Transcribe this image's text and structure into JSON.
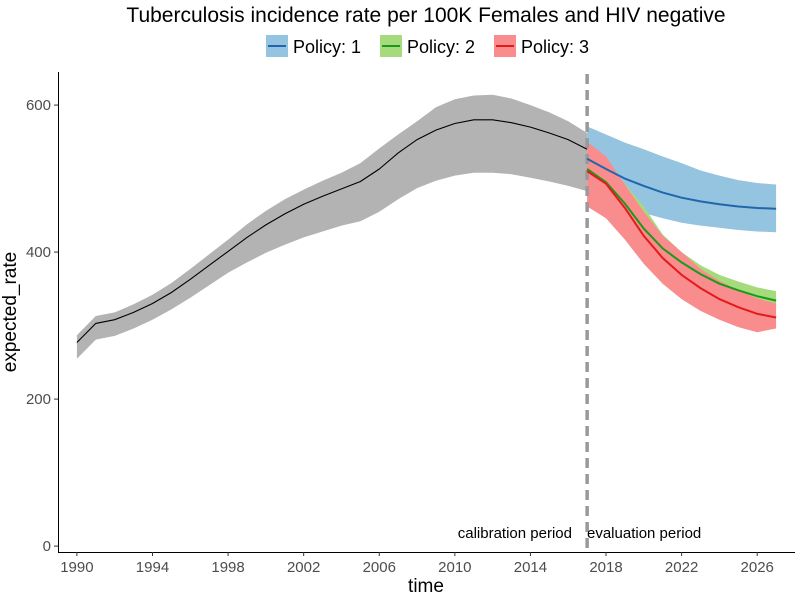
{
  "chart_data": {
    "type": "line",
    "title": "Tuberculosis incidence rate per 100K Females and HIV negative",
    "xlabel": "time",
    "ylabel": "expected_rate",
    "xlim": [
      1989,
      2028
    ],
    "ylim": [
      -8,
      645
    ],
    "x_ticks": [
      1990,
      1994,
      1998,
      2002,
      2006,
      2010,
      2014,
      2018,
      2022,
      2026
    ],
    "y_ticks": [
      0,
      200,
      400,
      600
    ],
    "grid": false,
    "legend": {
      "position": "top"
    },
    "divider": {
      "x": 2017,
      "style": "dashed",
      "color": "#999999"
    },
    "annotations": {
      "left": "calibration period",
      "right": "evaluation period"
    },
    "history": {
      "color": "#000000",
      "band_color": "#b3b3b3",
      "x": [
        1990,
        1991,
        1992,
        1993,
        1994,
        1995,
        1996,
        1997,
        1998,
        1999,
        2000,
        2001,
        2002,
        2003,
        2004,
        2005,
        2006,
        2007,
        2008,
        2009,
        2010,
        2011,
        2012,
        2013,
        2014,
        2015,
        2016,
        2017
      ],
      "y": [
        277,
        303,
        308,
        318,
        330,
        345,
        363,
        382,
        401,
        420,
        437,
        452,
        465,
        476,
        486,
        496,
        513,
        535,
        553,
        566,
        575,
        580,
        580,
        576,
        570,
        562,
        553,
        540
      ],
      "lower": [
        255,
        281,
        286,
        296,
        308,
        322,
        338,
        355,
        372,
        386,
        399,
        410,
        420,
        428,
        436,
        442,
        455,
        472,
        487,
        497,
        504,
        508,
        508,
        506,
        501,
        496,
        490,
        483
      ],
      "upper": [
        287,
        313,
        318,
        329,
        342,
        358,
        377,
        397,
        417,
        438,
        456,
        472,
        485,
        497,
        508,
        521,
        541,
        560,
        578,
        597,
        608,
        613,
        614,
        609,
        600,
        590,
        578,
        562
      ]
    },
    "series": [
      {
        "name": "Policy: 1",
        "color": "#2166ac",
        "band_color": "#94c4df",
        "x": [
          2017,
          2018,
          2019,
          2020,
          2021,
          2022,
          2023,
          2024,
          2025,
          2026,
          2027
        ],
        "y": [
          527,
          513,
          500,
          490,
          481,
          474,
          469,
          465,
          462,
          460,
          459
        ],
        "lower": [
          496,
          482,
          466,
          453,
          446,
          440,
          436,
          433,
          430,
          428,
          427
        ],
        "upper": [
          571,
          560,
          549,
          540,
          530,
          521,
          511,
          504,
          498,
          494,
          492
        ]
      },
      {
        "name": "Policy: 2",
        "color": "#1a9a1a",
        "band_color": "#a6db7d",
        "x": [
          2017,
          2018,
          2019,
          2020,
          2021,
          2022,
          2023,
          2024,
          2025,
          2026,
          2027
        ],
        "y": [
          513,
          495,
          466,
          432,
          405,
          386,
          370,
          357,
          348,
          340,
          334
        ],
        "lower": [
          495,
          478,
          453,
          420,
          392,
          373,
          359,
          347,
          338,
          331,
          325
        ],
        "upper": [
          545,
          528,
          493,
          462,
          424,
          400,
          382,
          369,
          360,
          352,
          347
        ]
      },
      {
        "name": "Policy: 3",
        "color": "#e41a1c",
        "band_color": "#f98c8c",
        "x": [
          2017,
          2018,
          2019,
          2020,
          2021,
          2022,
          2023,
          2024,
          2025,
          2026,
          2027
        ],
        "y": [
          510,
          493,
          460,
          422,
          392,
          369,
          351,
          336,
          325,
          316,
          311
        ],
        "lower": [
          462,
          446,
          417,
          384,
          357,
          336,
          320,
          308,
          298,
          291,
          296
        ],
        "upper": [
          550,
          530,
          492,
          455,
          422,
          400,
          377,
          361,
          348,
          337,
          330
        ]
      }
    ]
  }
}
